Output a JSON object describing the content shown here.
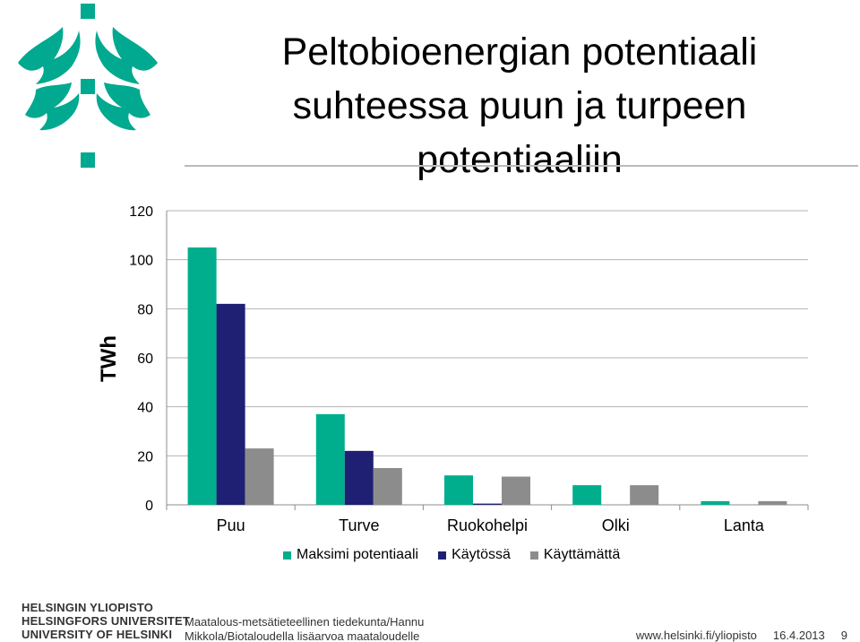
{
  "title_lines": [
    "Peltobioenergian potentiaali",
    "suhteessa puun ja turpeen",
    "potentiaaliin"
  ],
  "footer": {
    "logo_lines": [
      "HELSINGIN YLIOPISTO",
      "HELSINGFORS UNIVERSITET",
      "UNIVERSITY OF HELSINKI"
    ],
    "text_lines": [
      "Maatalous-metsätieteellinen tiedekunta/Hannu",
      "Mikkola/Biotaloudella lisäarvoa maataloudelle"
    ],
    "url": "www.helsinki.fi/yliopisto",
    "date": "16.4.2013",
    "page": "9"
  },
  "colors": {
    "brand": "#00a98f",
    "maksimi": "#00ae8e",
    "kaytossa": "#1f1f74",
    "kayttamatta": "#8c8c8c",
    "gridline": "#b3b3b3"
  },
  "chart_data": {
    "type": "bar",
    "categories": [
      "Puu",
      "Turve",
      "Ruokohelpi",
      "Olki",
      "Lanta"
    ],
    "series": [
      {
        "name": "Maksimi potentiaali",
        "values": [
          105,
          37,
          12,
          8,
          1.5
        ]
      },
      {
        "name": "Käytössä",
        "values": [
          82,
          22,
          0.5,
          0,
          0
        ]
      },
      {
        "name": "Käyttämättä",
        "values": [
          23,
          15,
          11.5,
          8,
          1.5
        ]
      }
    ],
    "ylabel": "TWh",
    "ylim": [
      0,
      120
    ],
    "yticks": [
      "0",
      "20",
      "40",
      "60",
      "80",
      "100",
      "120"
    ],
    "grid": true,
    "legend": "bottom"
  }
}
